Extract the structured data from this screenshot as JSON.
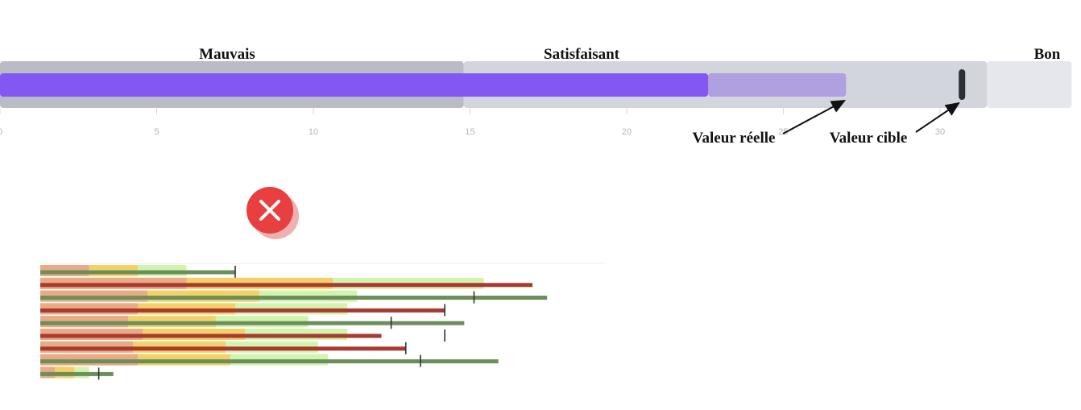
{
  "chart_data": [
    {
      "type": "bar",
      "subtype": "bullet",
      "x_ticks": [
        0,
        5,
        10,
        15,
        20,
        25,
        30
      ],
      "xlim": [
        0,
        34.2
      ],
      "grid": false,
      "ranges": [
        {
          "label": "Mauvais",
          "from": 0,
          "to": 14.8,
          "color": "#b9bcc4"
        },
        {
          "label": "Satisfaisant",
          "from": 14.8,
          "to": 31.5,
          "color": "#d3d5dc"
        },
        {
          "label": "Bon",
          "from": 31.5,
          "to": 34.2,
          "color": "#e6e7ec"
        }
      ],
      "measures": [
        {
          "from": 0,
          "to": 22.6,
          "color": "#8357f2"
        },
        {
          "from": 22.6,
          "to": 27.0,
          "color": "#b0a0e0"
        }
      ],
      "actual_value": 27.0,
      "target_value": 30.7,
      "annotations": [
        {
          "text": "Valeur réelle",
          "points_to": "actual_value"
        },
        {
          "text": "Valeur cible",
          "points_to": "target_value"
        }
      ],
      "colors": {
        "measure": "#8357f2",
        "projected": "#b0a0e0",
        "target": "#2b3035"
      }
    },
    {
      "type": "bar",
      "subtype": "bullet-multi",
      "marked_as": "incorrect",
      "x_max": 100,
      "grid": false,
      "rows": [
        {
          "red_end": 10,
          "yellow_end": 20,
          "green_end": 30,
          "measure": 40,
          "target": 40,
          "measure_color": "green"
        },
        {
          "red_end": 30,
          "yellow_end": 60,
          "green_end": 91,
          "measure": 101,
          "target": null,
          "measure_color": "red"
        },
        {
          "red_end": 22,
          "yellow_end": 45,
          "green_end": 65,
          "measure": 104,
          "target": 89,
          "measure_color": "green"
        },
        {
          "red_end": 20,
          "yellow_end": 40,
          "green_end": 63,
          "measure": 83,
          "target": 83,
          "measure_color": "red"
        },
        {
          "red_end": 18,
          "yellow_end": 36,
          "green_end": 55,
          "measure": 87,
          "target": 72,
          "measure_color": "green"
        },
        {
          "red_end": 21,
          "yellow_end": 42,
          "green_end": 63,
          "measure": 70,
          "target": 83,
          "measure_color": "red"
        },
        {
          "red_end": 19,
          "yellow_end": 38,
          "green_end": 57,
          "measure": 75,
          "target": 75,
          "measure_color": "red"
        },
        {
          "red_end": 20,
          "yellow_end": 39,
          "green_end": 59,
          "measure": 94,
          "target": 78,
          "measure_color": "green"
        },
        {
          "red_end": 3,
          "yellow_end": 7,
          "green_end": 10,
          "measure": 15,
          "target": 12,
          "measure_color": "green"
        }
      ],
      "colors": {
        "red": "#eaa58a",
        "yellow": "#f7cd60",
        "green": "#cdf3a5",
        "measure_red": "#a83a2f",
        "measure_green": "#6b8f5a",
        "target": "#333333",
        "badge": "#e84040"
      }
    }
  ]
}
